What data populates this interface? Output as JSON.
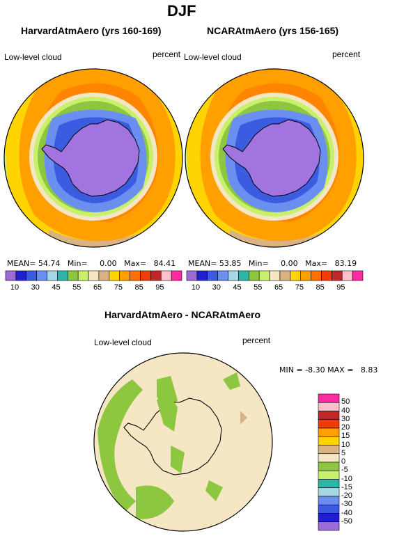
{
  "figure": {
    "title": "DJF"
  },
  "panels": [
    {
      "title": "HarvardAtmAero (yrs 160-169)",
      "variable": "Low-level cloud",
      "units": "percent",
      "stats": {
        "mean_label": "MEAN=",
        "mean": "54.74",
        "min_label": "Min=",
        "min": "0.00",
        "max_label": "Max=",
        "max": "84.41"
      }
    },
    {
      "title": "NCARAtmAero (yrs 156-165)",
      "variable": "Low-level cloud",
      "units": "percent",
      "stats": {
        "mean_label": "MEAN=",
        "mean": "53.85",
        "min_label": "Min=",
        "min": "0.00",
        "max_label": "Max=",
        "max": "83.19"
      }
    }
  ],
  "colorbar_top": {
    "colors": [
      "#9b6bd6",
      "#1f1fd1",
      "#3b5ce0",
      "#6b8ff0",
      "#a8d8e8",
      "#2fb5a8",
      "#8dc63f",
      "#c8f06a",
      "#f5e6c4",
      "#dab384",
      "#ffd400",
      "#ffa000",
      "#ff7000",
      "#f03c0a",
      "#c02828",
      "#ffc0cb",
      "#ff2aa0"
    ],
    "tick_labels": [
      "10",
      "30",
      "45",
      "55",
      "65",
      "75",
      "85",
      "95"
    ]
  },
  "difference": {
    "title": "HarvardAtmAero - NCARAtmAero",
    "variable": "Low-level cloud",
    "units": "percent",
    "stats": {
      "min_label": "MIN =",
      "min": "-8.30",
      "max_label": "MAX =",
      "max": "8.83"
    },
    "colorbar": {
      "colors_top_to_bottom": [
        "#ff2aa0",
        "#ffc0cb",
        "#c02828",
        "#f03c0a",
        "#ffa000",
        "#ffd400",
        "#dab384",
        "#f5e6c4",
        "#8dc63f",
        "#c8f06a",
        "#2fb5a8",
        "#a8d8e8",
        "#6b8ff0",
        "#3b5ce0",
        "#1f1fd1",
        "#9b6bd6"
      ],
      "tick_labels": [
        "50",
        "40",
        "30",
        "20",
        "15",
        "10",
        "5",
        "0",
        "-5",
        "-10",
        "-15",
        "-20",
        "-30",
        "-40",
        "-50"
      ]
    }
  }
}
